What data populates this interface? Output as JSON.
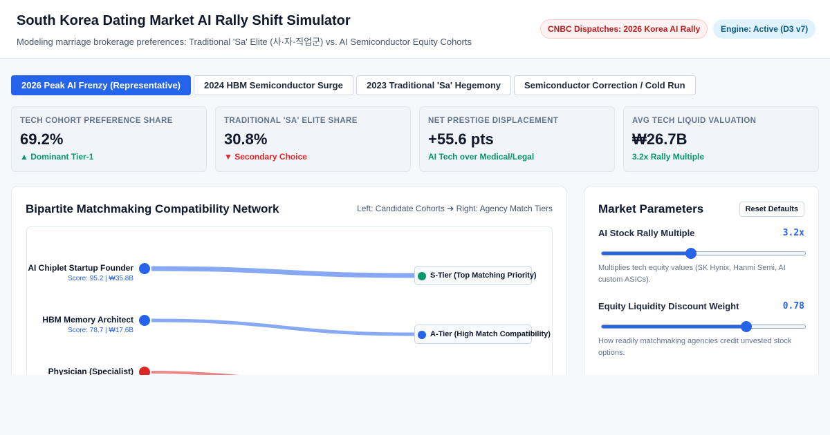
{
  "header": {
    "title": "South Korea Dating Market AI Rally Shift Simulator",
    "subtitle": "Modeling marriage brokerage preferences: Traditional 'Sa' Elite (사·자·직업군) vs. AI Semiconductor Equity Cohorts",
    "badge_news": "CNBC Dispatches: 2026 Korea AI Rally",
    "badge_engine": "Engine: Active (D3 v7)"
  },
  "scenarios": [
    {
      "label": "2026 Peak AI Frenzy (Representative)",
      "active": true
    },
    {
      "label": "2024 HBM Semiconductor Surge",
      "active": false
    },
    {
      "label": "2023 Traditional 'Sa' Hegemony",
      "active": false
    },
    {
      "label": "Semiconductor Correction / Cold Run",
      "active": false
    }
  ],
  "metrics": [
    {
      "label": "TECH COHORT PREFERENCE SHARE",
      "value": "69.2%",
      "trend": "▲ Dominant Tier-1",
      "direction": "up"
    },
    {
      "label": "TRADITIONAL 'SA' ELITE SHARE",
      "value": "30.8%",
      "trend": "▼ Secondary Choice",
      "direction": "down"
    },
    {
      "label": "NET PRESTIGE DISPLACEMENT",
      "value": "+55.6 pts",
      "trend": "AI Tech over Medical/Legal",
      "direction": "up"
    },
    {
      "label": "AVG TECH LIQUID VALUATION",
      "value": "₩26.7B",
      "trend": "3.2x Rally Multiple",
      "direction": "up"
    }
  ],
  "network": {
    "title": "Bipartite Matchmaking Compatibility Network",
    "legend": "Left: Candidate Cohorts ➔ Right: Agency Match Tiers",
    "candidates": [
      {
        "name": "AI Chiplet Startup Founder",
        "score": "Score: 95.2 | ₩35.8B",
        "color": "#2563eb",
        "tier": 0
      },
      {
        "name": "HBM Memory Architect",
        "score": "Score: 78.7 | ₩17.6B",
        "color": "#2563eb",
        "tier": 1
      },
      {
        "name": "Physician (Specialist)",
        "score": "",
        "color": "#dc2626",
        "tier": 2
      }
    ],
    "tiers": [
      {
        "label": "S-Tier (Top Matching Priority)",
        "color": "#059669"
      },
      {
        "label": "A-Tier (High Match Compatibility)",
        "color": "#2563eb"
      }
    ]
  },
  "params": {
    "title": "Market Parameters",
    "reset_label": "Reset Defaults",
    "items": [
      {
        "label": "AI Stock Rally Multiple",
        "value": "3.2x",
        "level": 0.44,
        "desc": "Multiplies tech equity values (SK Hynix, Hanmi Semi, AI custom ASICs)."
      },
      {
        "label": "Equity Liquidity Discount Weight",
        "value": "0.78",
        "level": 0.71,
        "desc": "How readily matchmaking agencies credit unvested stock options."
      }
    ]
  }
}
